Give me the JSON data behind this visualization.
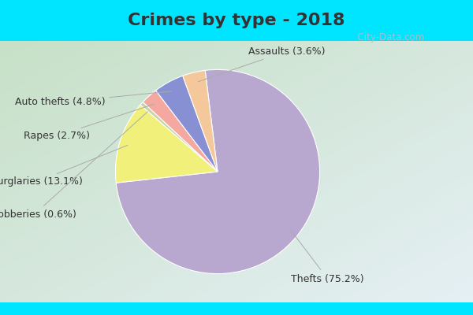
{
  "title": "Crimes by type - 2018",
  "slices": [
    {
      "label": "Thefts",
      "pct": 75.2,
      "color": "#b8a8d0"
    },
    {
      "label": "Burglaries",
      "pct": 13.1,
      "color": "#f0f07a"
    },
    {
      "label": "Robberies",
      "pct": 0.6,
      "color": "#c8d4a8"
    },
    {
      "label": "Rapes",
      "pct": 2.7,
      "color": "#f4a8a0"
    },
    {
      "label": "Auto thefts",
      "pct": 4.8,
      "color": "#8890d4"
    },
    {
      "label": "Assaults",
      "pct": 3.6,
      "color": "#f4c89a"
    }
  ],
  "startangle": 97,
  "background_top": "#00e5ff",
  "background_main_tl": "#c8ddc8",
  "background_main_br": "#e8eef8",
  "title_fontsize": 16,
  "label_fontsize": 9,
  "watermark": "  City-Data.com",
  "title_color": "#333333",
  "label_color": "#333333",
  "line_color": "#aaaaaa"
}
